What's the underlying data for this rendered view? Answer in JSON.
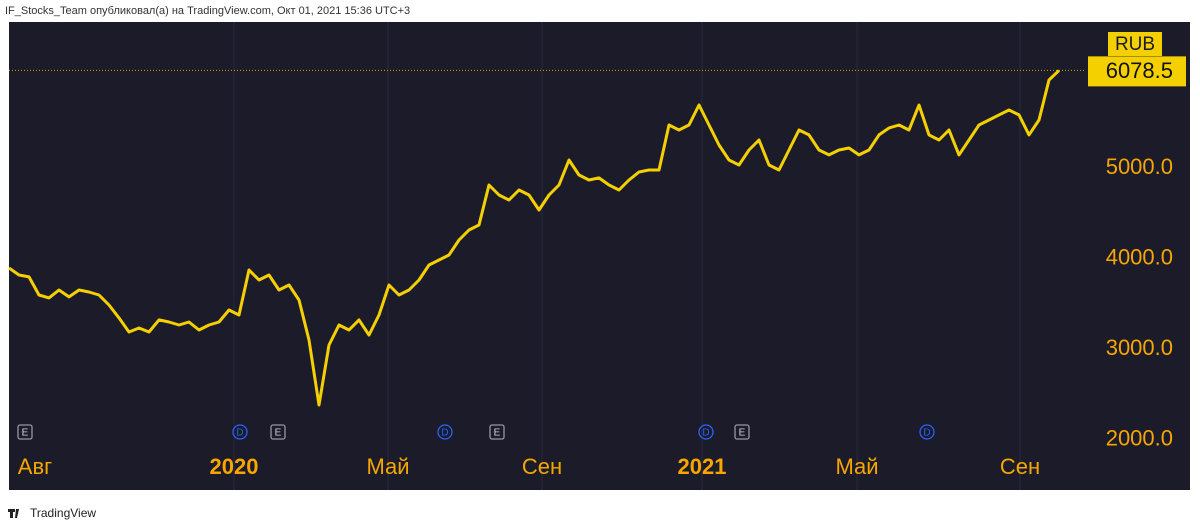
{
  "chart_data": {
    "type": "line",
    "source": "IF_Stocks_Team опубликовал(а) на TradingView.com, Окт 01, 2021 15:36 UTC+3",
    "footer": "TradingView",
    "currency": "RUB",
    "color": "#f5d000",
    "values": [
      3895,
      3818,
      3796,
      3597,
      3564,
      3652,
      3575,
      3652,
      3630,
      3597,
      3486,
      3343,
      3188,
      3232,
      3188,
      3321,
      3298,
      3265,
      3298,
      3210,
      3265,
      3298,
      3431,
      3376,
      3873,
      3762,
      3818,
      3652,
      3707,
      3541,
      3099,
      2381,
      3044,
      3265,
      3210,
      3321,
      3155,
      3376,
      3707,
      3597,
      3652,
      3762,
      3928,
      3983,
      4039,
      4204,
      4315,
      4370,
      4812,
      4702,
      4646,
      4757,
      4702,
      4536,
      4702,
      4812,
      5088,
      4923,
      4867,
      4890,
      4812,
      4757,
      4867,
      4956,
      4978,
      4978,
      5475,
      5420,
      5475,
      5696,
      5475,
      5254,
      5088,
      5033,
      5199,
      5309,
      5033,
      4978,
      5199,
      5420,
      5365,
      5199,
      5144,
      5199,
      5221,
      5144,
      5199,
      5365,
      5442,
      5475,
      5420,
      5696,
      5365,
      5309,
      5420,
      5144,
      5309,
      5475,
      5530,
      5586,
      5641,
      5586,
      5365,
      5530,
      5972,
      6078.5
    ],
    "xlim": [
      0,
      107.6
    ],
    "xticks": [
      {
        "value": 2.6,
        "label": "Авг"
      },
      {
        "value": 22.5,
        "label": "2020"
      },
      {
        "value": 37.9,
        "label": "Май"
      },
      {
        "value": 53.3,
        "label": "Сен"
      },
      {
        "value": 69.3,
        "label": "2021"
      },
      {
        "value": 84.8,
        "label": "Май"
      },
      {
        "value": 101.1,
        "label": "Сен"
      }
    ],
    "ylim": [
      1906,
      6613
    ],
    "yticks": [
      {
        "value": 2000,
        "label": "2000.0"
      },
      {
        "value": 3000,
        "label": "3000.0"
      },
      {
        "value": 4000,
        "label": "4000.0"
      },
      {
        "value": 5000,
        "label": "5000.0"
      }
    ],
    "events": [
      {
        "label": "E",
        "x": 1.6
      },
      {
        "label": "D",
        "x": 23.1
      },
      {
        "label": "E",
        "x": 26.9
      },
      {
        "label": "D",
        "x": 43.6
      },
      {
        "label": "E",
        "x": 48.8
      },
      {
        "label": "D",
        "x": 69.7
      },
      {
        "label": "E",
        "x": 73.3
      },
      {
        "label": "D",
        "x": 91.8
      }
    ],
    "grid": true
  }
}
